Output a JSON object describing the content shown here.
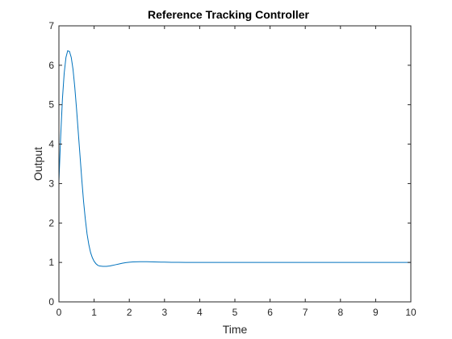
{
  "chart_data": {
    "type": "line",
    "title": "Reference Tracking Controller",
    "xlabel": "Time",
    "ylabel": "Output",
    "xlim": [
      0,
      10
    ],
    "ylim": [
      0,
      7
    ],
    "xticks": [
      "0",
      "1",
      "2",
      "3",
      "4",
      "5",
      "6",
      "7",
      "8",
      "9",
      "10"
    ],
    "yticks": [
      "0",
      "1",
      "2",
      "3",
      "4",
      "5",
      "6",
      "7"
    ],
    "grid": false,
    "box": true,
    "series": [
      {
        "color": "#0072BD",
        "x": [
          0,
          0.05,
          0.1,
          0.15,
          0.2,
          0.25,
          0.3,
          0.35,
          0.4,
          0.45,
          0.5,
          0.55,
          0.6,
          0.65,
          0.7,
          0.75,
          0.8,
          0.85,
          0.9,
          0.95,
          1.0,
          1.05,
          1.1,
          1.15,
          1.2,
          1.25,
          1.3,
          1.35,
          1.4,
          1.45,
          1.5,
          1.6,
          1.7,
          1.8,
          1.9,
          2.0,
          2.1,
          2.2,
          2.3,
          2.4,
          2.5,
          2.6,
          2.7,
          2.8,
          2.9,
          3.0,
          3.2,
          3.4,
          3.6,
          3.8,
          4.0,
          5.0,
          6.0,
          7.0,
          8.0,
          9.0,
          10.0
        ],
        "y": [
          3.05,
          4.2,
          5.15,
          5.8,
          6.2,
          6.37,
          6.35,
          6.2,
          5.9,
          5.45,
          4.9,
          4.3,
          3.7,
          3.1,
          2.55,
          2.1,
          1.72,
          1.45,
          1.25,
          1.12,
          1.03,
          0.97,
          0.93,
          0.91,
          0.905,
          0.9,
          0.9,
          0.9,
          0.905,
          0.91,
          0.92,
          0.94,
          0.96,
          0.98,
          0.995,
          1.005,
          1.012,
          1.016,
          1.018,
          1.018,
          1.017,
          1.015,
          1.013,
          1.011,
          1.009,
          1.007,
          1.004,
          1.002,
          1.001,
          1.0,
          1.0,
          1.0,
          1.0,
          1.0,
          1.0,
          1.0,
          1.0
        ]
      }
    ]
  }
}
